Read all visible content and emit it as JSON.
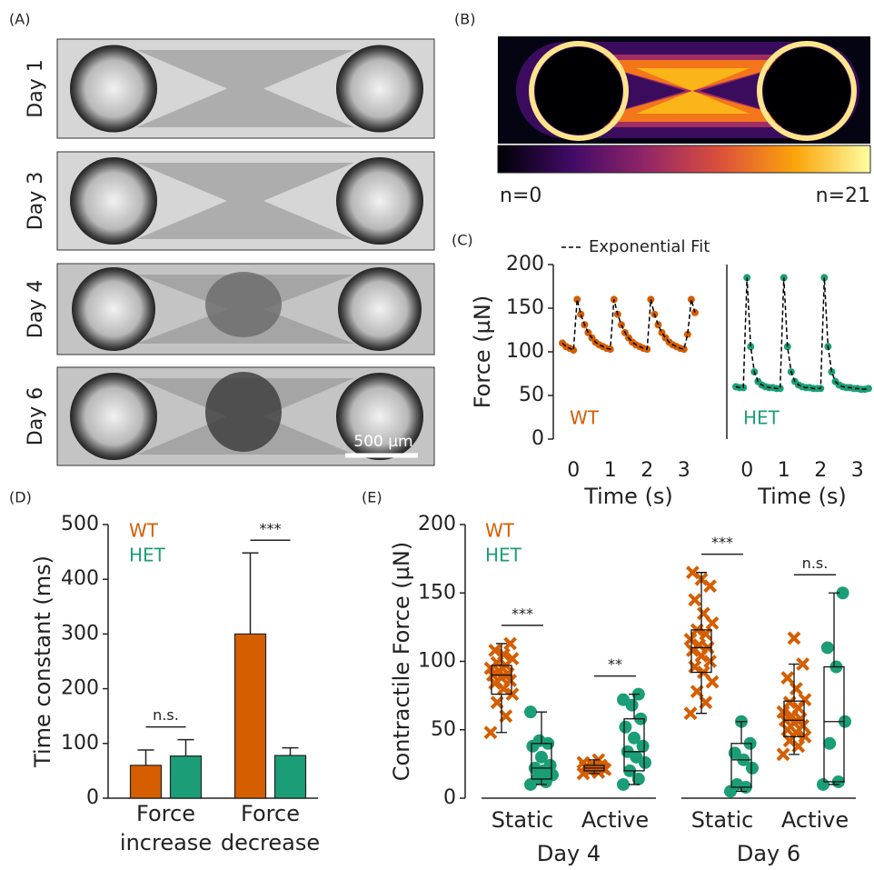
{
  "panel_a": {
    "label": "(A)",
    "days": [
      "Day 1",
      "Day 3",
      "Day 4",
      "Day 6"
    ],
    "scale_bar": "500 µm"
  },
  "panel_b": {
    "label": "(B)",
    "colorbar_min": "n=0",
    "colorbar_max": "n=21"
  },
  "chart_data": [
    {
      "type": "line",
      "panel": "(C)",
      "ylabel": "Force (µN)",
      "xlabel": "Time (s)",
      "xlim": [
        -0.4,
        3.4
      ],
      "ylim": [
        0,
        200
      ],
      "xticks": [
        0,
        1,
        2,
        3
      ],
      "yticks": [
        0,
        50,
        100,
        150,
        200
      ],
      "x": [
        -0.3,
        -0.2,
        -0.1,
        0,
        0.1,
        0.2,
        0.3,
        0.4,
        0.5,
        0.6,
        0.7,
        0.8,
        0.9,
        1.0,
        1.1,
        1.2,
        1.3,
        1.4,
        1.5,
        1.6,
        1.7,
        1.8,
        1.9,
        2.0,
        2.1,
        2.2,
        2.3,
        2.4,
        2.5,
        2.6,
        2.7,
        2.8,
        2.9,
        3.0,
        3.1,
        3.2,
        3.3
      ],
      "series": [
        {
          "name": "WT",
          "color": "#d55e00",
          "marker": "o",
          "values": [
            110,
            106,
            104,
            102,
            160,
            143,
            131,
            122,
            116,
            111,
            108,
            106,
            104,
            103,
            160,
            143,
            131,
            122,
            116,
            111,
            108,
            106,
            104,
            103,
            160,
            143,
            131,
            122,
            116,
            111,
            108,
            106,
            104,
            103,
            120,
            160,
            145
          ]
        },
        {
          "name": "Exponential Fit",
          "color": "#000000",
          "linestyle": "--",
          "values": [
            110,
            106,
            104,
            102,
            160,
            143,
            131,
            122,
            116,
            111,
            108,
            106,
            104,
            103,
            160,
            143,
            131,
            122,
            116,
            111,
            108,
            106,
            104,
            103,
            160,
            143,
            131,
            122,
            116,
            111,
            108,
            106,
            104,
            103,
            120,
            160,
            145
          ]
        }
      ]
    },
    {
      "type": "line",
      "xlabel": "Time (s)",
      "xlim": [
        -0.4,
        3.4
      ],
      "ylim": [
        0,
        200
      ],
      "xticks": [
        0,
        1,
        2,
        3
      ],
      "x": [
        -0.3,
        -0.2,
        -0.1,
        0,
        0.1,
        0.2,
        0.3,
        0.4,
        0.5,
        0.6,
        0.7,
        0.8,
        0.9,
        1.0,
        1.1,
        1.2,
        1.3,
        1.4,
        1.5,
        1.6,
        1.7,
        1.8,
        1.9,
        2.0,
        2.1,
        2.2,
        2.3,
        2.4,
        2.5,
        2.6,
        2.7,
        2.8,
        2.9,
        3.0,
        3.1,
        3.2,
        3.3
      ],
      "series": [
        {
          "name": "HET",
          "color": "#1b9e77",
          "marker": "o",
          "values": [
            60,
            59,
            59,
            185,
            106,
            77,
            66,
            62,
            60,
            59,
            59,
            58,
            58,
            185,
            106,
            77,
            66,
            62,
            60,
            59,
            59,
            58,
            58,
            58,
            185,
            106,
            77,
            66,
            62,
            60,
            59,
            59,
            58,
            58,
            57,
            57,
            58
          ]
        },
        {
          "color": "#000000",
          "linestyle": "--",
          "values": [
            60,
            59,
            59,
            185,
            106,
            77,
            66,
            62,
            60,
            59,
            59,
            58,
            58,
            185,
            106,
            77,
            66,
            62,
            60,
            59,
            59,
            58,
            58,
            58,
            185,
            106,
            77,
            66,
            62,
            60,
            59,
            59,
            58,
            58,
            57,
            57,
            58
          ]
        }
      ]
    },
    {
      "type": "bar",
      "panel": "(D)",
      "ylabel": "Time constant (ms)",
      "categories": [
        [
          "Force",
          "increase"
        ],
        [
          "Force",
          "decrease"
        ]
      ],
      "ylim": [
        0,
        500
      ],
      "yticks": [
        0,
        100,
        200,
        300,
        400,
        500
      ],
      "series": [
        {
          "name": "WT",
          "color": "#d55e00",
          "values": [
            60,
            300
          ],
          "errors": [
            28,
            148
          ]
        },
        {
          "name": "HET",
          "color": "#1b9e77",
          "values": [
            77,
            78
          ],
          "errors": [
            30,
            14
          ]
        }
      ],
      "annotations": [
        "n.s.",
        "***"
      ]
    },
    {
      "type": "box",
      "panel": "(E)",
      "ylabel": "Contractile Force (µN)",
      "categories": [
        "Static",
        "Active",
        "Static",
        "Active"
      ],
      "groups": [
        "Day 4",
        "Day 6"
      ],
      "ylim": [
        0,
        200
      ],
      "yticks": [
        0,
        50,
        100,
        150,
        200
      ],
      "series": [
        {
          "name": "WT",
          "color": "#d55e00",
          "marker": "x",
          "boxes": [
            {
              "min": 48,
              "q1": 76,
              "median": 90,
              "q3": 97,
              "max": 113
            },
            {
              "min": 18,
              "q1": 20,
              "median": 22,
              "q3": 24,
              "max": 28
            },
            {
              "min": 62,
              "q1": 92,
              "median": 110,
              "q3": 123,
              "max": 165
            },
            {
              "min": 32,
              "q1": 45,
              "median": 57,
              "q3": 71,
              "max": 98
            }
          ],
          "points": [
            [
              48,
              60,
              70,
              76,
              80,
              84,
              86,
              88,
              90,
              91,
              93,
              95,
              97,
              99,
              102,
              105,
              108,
              113
            ],
            [
              18,
              19,
              20,
              21,
              21,
              22,
              22,
              23,
              23,
              24,
              25,
              26,
              28
            ],
            [
              62,
              70,
              78,
              85,
              92,
              96,
              100,
              104,
              108,
              110,
              112,
              116,
              120,
              123,
              128,
              135,
              145,
              155,
              160,
              165
            ],
            [
              32,
              38,
              42,
              45,
              48,
              50,
              53,
              55,
              57,
              58,
              60,
              63,
              66,
              70,
              72,
              80,
              88,
              98,
              117
            ]
          ]
        },
        {
          "name": "HET",
          "color": "#1b9e77",
          "marker": "o",
          "boxes": [
            {
              "min": 10,
              "q1": 14,
              "median": 22,
              "q3": 40,
              "max": 63
            },
            {
              "min": 10,
              "q1": 20,
              "median": 34,
              "q3": 58,
              "max": 76
            },
            {
              "min": 5,
              "q1": 8,
              "median": 28,
              "q3": 40,
              "max": 56
            },
            {
              "min": 10,
              "q1": 12,
              "median": 56,
              "q3": 96,
              "max": 150
            }
          ],
          "points": [
            [
              10,
              12,
              14,
              17,
              20,
              22,
              24,
              30,
              38,
              40,
              42,
              63
            ],
            [
              10,
              14,
              20,
              26,
              30,
              34,
              38,
              44,
              52,
              58,
              68,
              72,
              76
            ],
            [
              5,
              8,
              10,
              22,
              28,
              33,
              40,
              56
            ],
            [
              10,
              12,
              40,
              56,
              96,
              110,
              150
            ]
          ]
        }
      ],
      "annotations": [
        "***",
        "**",
        "***",
        "n.s."
      ]
    }
  ]
}
